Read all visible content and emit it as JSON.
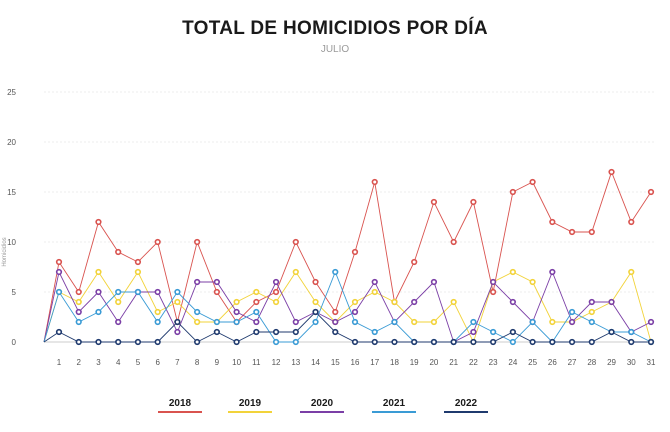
{
  "chart_data": {
    "type": "line",
    "title": "TOTAL DE HOMICIDIOS POR DÍA",
    "subtitle": "JULIO",
    "xlabel": "",
    "ylabel": "Homicidios",
    "ylim": [
      0,
      25
    ],
    "yticks": [
      0,
      5,
      10,
      15,
      20,
      25
    ],
    "x": [
      1,
      2,
      3,
      4,
      5,
      6,
      7,
      8,
      9,
      10,
      11,
      12,
      13,
      14,
      15,
      16,
      17,
      18,
      19,
      20,
      21,
      22,
      23,
      24,
      25,
      26,
      27,
      28,
      29,
      30,
      31
    ],
    "grid": true,
    "legend_position": "bottom",
    "series": [
      {
        "name": "2018",
        "color": "#d9534f",
        "values": [
          8,
          5,
          12,
          9,
          8,
          10,
          2,
          10,
          5,
          2,
          4,
          5,
          10,
          6,
          3,
          9,
          16,
          4,
          8,
          14,
          10,
          14,
          5,
          15,
          16,
          12,
          11,
          11,
          17,
          12,
          15
        ]
      },
      {
        "name": "2019",
        "color": "#f2d33a",
        "values": [
          5,
          4,
          7,
          4,
          7,
          3,
          4,
          2,
          2,
          4,
          5,
          4,
          7,
          4,
          2,
          4,
          5,
          4,
          2,
          2,
          4,
          0,
          6,
          7,
          6,
          2,
          2,
          3,
          4,
          7,
          0
        ]
      },
      {
        "name": "2020",
        "color": "#7b3fa6",
        "values": [
          7,
          3,
          5,
          2,
          5,
          5,
          1,
          6,
          6,
          3,
          2,
          6,
          2,
          3,
          2,
          3,
          6,
          2,
          4,
          6,
          0,
          1,
          6,
          4,
          2,
          7,
          2,
          4,
          4,
          1,
          2
        ]
      },
      {
        "name": "2021",
        "color": "#3a9bd5",
        "values": [
          5,
          2,
          3,
          5,
          5,
          2,
          5,
          3,
          2,
          2,
          3,
          0,
          0,
          2,
          7,
          2,
          1,
          2,
          0,
          0,
          0,
          2,
          1,
          0,
          2,
          0,
          3,
          2,
          1,
          1,
          0
        ]
      },
      {
        "name": "2022",
        "color": "#1f3a6e",
        "values": [
          1,
          0,
          0,
          0,
          0,
          0,
          2,
          0,
          1,
          0,
          1,
          1,
          1,
          3,
          1,
          0,
          0,
          0,
          0,
          0,
          0,
          0,
          0,
          1,
          0,
          0,
          0,
          0,
          1,
          0,
          0
        ]
      }
    ]
  }
}
